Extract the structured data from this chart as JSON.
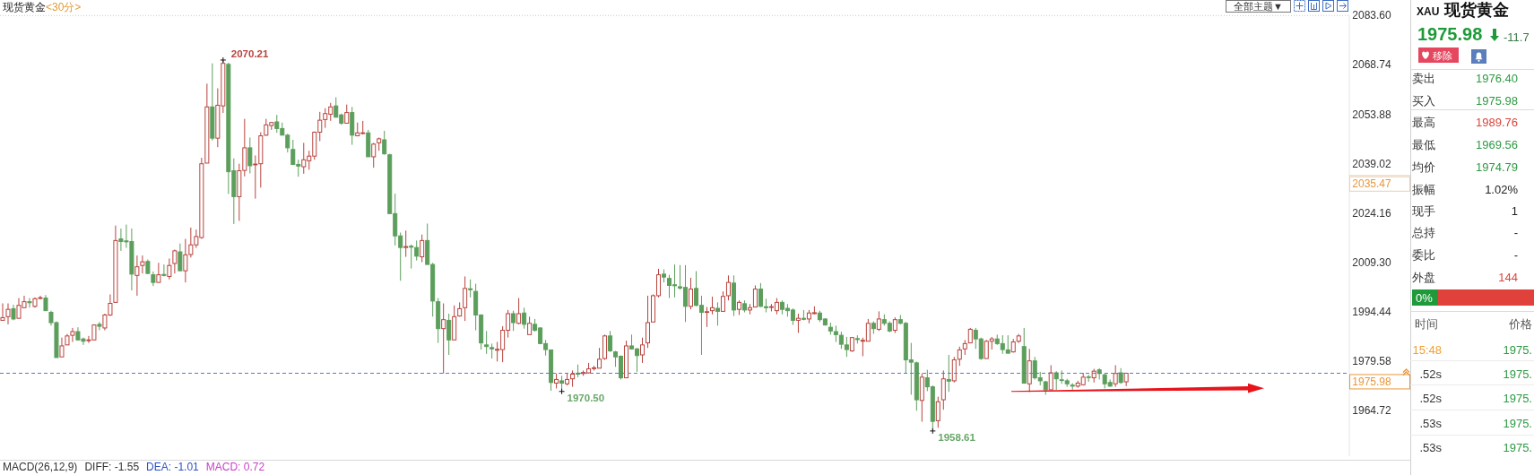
{
  "chart_data": [
    {
      "type": "candlestick",
      "title": "现货黄金",
      "subtitle": "<30分>",
      "categories": [
        null,
        null,
        null,
        null,
        null,
        null,
        null,
        null,
        null,
        null,
        null,
        null,
        null,
        null,
        null,
        null,
        null,
        null,
        null,
        null,
        null,
        null,
        null,
        null,
        null,
        null,
        null,
        null,
        null,
        null,
        null,
        null,
        null,
        null,
        null,
        null,
        null,
        null,
        null,
        null,
        null,
        null,
        null,
        null,
        null,
        null,
        null,
        null,
        null,
        null,
        null,
        null,
        null,
        null,
        null,
        null,
        null,
        null,
        null,
        null,
        null,
        null,
        null,
        null,
        null,
        null,
        null,
        null,
        null,
        null,
        null,
        null,
        null,
        null,
        null,
        null,
        null,
        null,
        null,
        null,
        null,
        null,
        null,
        null,
        null,
        null,
        null,
        null,
        null,
        null,
        null,
        null,
        null,
        null,
        null,
        null,
        null,
        null,
        null,
        null,
        null,
        null,
        null,
        null,
        null,
        null,
        null,
        null,
        null,
        null,
        null,
        null,
        null,
        null,
        null,
        null,
        null,
        null,
        null,
        null,
        null,
        null,
        null,
        null,
        null,
        null,
        null,
        null,
        null,
        null,
        null,
        null,
        null,
        null,
        null,
        null,
        null,
        null,
        null,
        null,
        null,
        null,
        null,
        null,
        null,
        null,
        null,
        null,
        null,
        null,
        null,
        null,
        null,
        null,
        null,
        null,
        null,
        null,
        null,
        null,
        null,
        null,
        null,
        null,
        null,
        null,
        null,
        null,
        null,
        null,
        null,
        null,
        null,
        null,
        null,
        null,
        null,
        null,
        null,
        null,
        null,
        null,
        null,
        null,
        null,
        null,
        null,
        null,
        null,
        null,
        null,
        null,
        null,
        null,
        null,
        null,
        null,
        null,
        null,
        null,
        null,
        null,
        null,
        null,
        null,
        null,
        null,
        null,
        null,
        null,
        null,
        null,
        null,
        null,
        null,
        null,
        null,
        null,
        null,
        null,
        null,
        null,
        null,
        null,
        null,
        null,
        null,
        null,
        null,
        null,
        null,
        null,
        null,
        null,
        null,
        null,
        null,
        null,
        null,
        null,
        null,
        null,
        null,
        null,
        null,
        null,
        null,
        null,
        null,
        null,
        null
      ],
      "ohlc": [
        [
          1991.9,
          1997.0,
          1991.9,
          1992.7
        ],
        [
          1993.0,
          1997.0,
          1990.7,
          1995.2
        ],
        [
          1995.4,
          1996.6,
          1991.9,
          1992.3
        ],
        [
          1992.5,
          1998.6,
          1992.5,
          1996.4
        ],
        [
          1995.7,
          1999.3,
          1995.7,
          1997.5
        ],
        [
          1997.5,
          1998.6,
          1995.7,
          1997.2
        ],
        [
          1996.1,
          1998.8,
          1995.7,
          1998.4
        ],
        [
          1998.5,
          1999.3,
          1998.2,
          1998.7
        ],
        [
          1998.6,
          1999.5,
          1994.8,
          1994.8
        ],
        [
          1994.3,
          1994.8,
          1990.3,
          1991.2
        ],
        [
          1991.2,
          1991.6,
          1980.7,
          1980.7
        ],
        [
          1980.9,
          1986.7,
          1980.9,
          1984.2
        ],
        [
          1984.5,
          1987.8,
          1984.5,
          1987.2
        ],
        [
          1987.4,
          1989.6,
          1985.4,
          1988.5
        ],
        [
          1988.5,
          1989.8,
          1985.8,
          1986.0
        ],
        [
          1986.3,
          1986.7,
          1984.5,
          1985.6
        ],
        [
          1985.8,
          1987.2,
          1985.1,
          1986.0
        ],
        [
          1986.0,
          1990.7,
          1986.0,
          1990.5
        ],
        [
          1990.7,
          1991.4,
          1988.9,
          1990.1
        ],
        [
          1989.6,
          1993.9,
          1988.9,
          1993.5
        ],
        [
          1993.5,
          1999.7,
          1993.2,
          1997.0
        ],
        [
          1997.3,
          2020.4,
          1997.3,
          2015.9
        ],
        [
          2016.4,
          2019.5,
          2012.8,
          2015.6
        ],
        [
          2015.8,
          2020.7,
          2013.7,
          2015.5
        ],
        [
          2015.6,
          2019.5,
          2000.9,
          2005.8
        ],
        [
          2005.4,
          2011.4,
          1999.3,
          2008.0
        ],
        [
          2008.4,
          2011.4,
          2006.0,
          2009.5
        ],
        [
          2009.6,
          2010.2,
          2005.8,
          2006.0
        ],
        [
          2005.6,
          2006.6,
          2002.2,
          2003.3
        ],
        [
          2003.3,
          2009.2,
          2003.3,
          2005.6
        ],
        [
          2005.7,
          2008.7,
          2005.1,
          2005.4
        ],
        [
          2005.1,
          2010.5,
          2004.2,
          2008.4
        ],
        [
          2009.0,
          2013.2,
          2006.0,
          2012.8
        ],
        [
          2012.5,
          2015.0,
          2006.8,
          2006.8
        ],
        [
          2006.8,
          2016.4,
          2003.3,
          2011.6
        ],
        [
          2011.7,
          2019.8,
          2010.8,
          2014.6
        ],
        [
          2014.6,
          2019.2,
          2013.7,
          2017.1
        ],
        [
          2016.8,
          2040.8,
          2016.4,
          2039.0
        ],
        [
          2039.2,
          2063.1,
          2039.2,
          2056.1
        ],
        [
          2056.1,
          2069.2,
          2046.0,
          2046.7
        ],
        [
          2046.7,
          2061.7,
          2044.0,
          2056.6
        ],
        [
          2056.4,
          2070.21,
          2054.3,
          2069.2
        ],
        [
          2068.9,
          2069.4,
          2029.9,
          2036.6
        ],
        [
          2036.9,
          2040.6,
          2020.9,
          2029.1
        ],
        [
          2029.1,
          2039.0,
          2021.8,
          2036.9
        ],
        [
          2037.0,
          2052.5,
          2035.2,
          2043.8
        ],
        [
          2043.8,
          2046.9,
          2036.1,
          2038.4
        ],
        [
          2038.7,
          2041.5,
          2028.5,
          2038.9
        ],
        [
          2039.0,
          2048.5,
          2031.8,
          2047.4
        ],
        [
          2047.6,
          2052.5,
          2047.4,
          2050.7
        ],
        [
          2050.5,
          2051.6,
          2049.2,
          2051.4
        ],
        [
          2051.6,
          2053.7,
          2048.3,
          2049.6
        ],
        [
          2049.6,
          2051.4,
          2047.6,
          2047.6
        ],
        [
          2047.6,
          2048.0,
          2042.4,
          2043.8
        ],
        [
          2043.3,
          2046.2,
          2038.7,
          2038.8
        ],
        [
          2038.8,
          2040.2,
          2035.1,
          2038.3
        ],
        [
          2038.1,
          2045.3,
          2036.0,
          2040.2
        ],
        [
          2039.9,
          2042.9,
          2037.2,
          2041.3
        ],
        [
          2041.3,
          2048.7,
          2040.2,
          2048.5
        ],
        [
          2048.5,
          2054.6,
          2045.8,
          2052.1
        ],
        [
          2052.3,
          2055.7,
          2049.8,
          2054.1
        ],
        [
          2053.9,
          2057.3,
          2051.9,
          2056.1
        ],
        [
          2056.4,
          2059.0,
          2053.0,
          2053.0
        ],
        [
          2053.7,
          2054.1,
          2050.7,
          2051.2
        ],
        [
          2051.2,
          2056.8,
          2051.2,
          2054.4
        ],
        [
          2054.4,
          2056.1,
          2044.7,
          2047.6
        ],
        [
          2047.4,
          2051.4,
          2047.4,
          2048.3
        ],
        [
          2048.1,
          2051.9,
          2047.8,
          2048.3
        ],
        [
          2048.3,
          2049.2,
          2041.1,
          2041.1
        ],
        [
          2041.1,
          2045.3,
          2037.8,
          2044.9
        ],
        [
          2045.3,
          2046.9,
          2042.9,
          2046.5
        ],
        [
          2046.2,
          2048.9,
          2041.7,
          2042.0
        ],
        [
          2041.7,
          2042.0,
          2024.0,
          2024.0
        ],
        [
          2024.0,
          2030.0,
          2014.4,
          2017.3
        ],
        [
          2017.3,
          2018.3,
          2003.8,
          2013.8
        ],
        [
          2013.8,
          2018.9,
          2011.0,
          2014.1
        ],
        [
          2014.2,
          2014.7,
          2007.5,
          2013.9
        ],
        [
          2013.8,
          2015.9,
          2009.9,
          2011.2
        ],
        [
          2011.0,
          2017.7,
          2009.4,
          2015.9
        ],
        [
          2015.9,
          2021.0,
          2008.7,
          2008.7
        ],
        [
          2008.7,
          2009.2,
          1993.0,
          1997.7
        ],
        [
          1997.5,
          1998.6,
          1985.1,
          1989.4
        ],
        [
          1989.4,
          1997.0,
          1975.9,
          1992.1
        ],
        [
          1991.9,
          1993.9,
          1981.5,
          1986.0
        ],
        [
          1986.0,
          1996.4,
          1986.0,
          1993.0
        ],
        [
          1993.2,
          1997.3,
          1993.0,
          1995.4
        ],
        [
          1995.7,
          2005.1,
          1991.7,
          2001.5
        ],
        [
          2001.4,
          2004.2,
          1998.8,
          2001.1
        ],
        [
          2000.6,
          2002.9,
          1988.9,
          1993.5
        ],
        [
          1993.5,
          1993.7,
          1983.1,
          1985.1
        ],
        [
          1984.5,
          1988.7,
          1981.8,
          1984.0
        ],
        [
          1983.7,
          1984.9,
          1980.4,
          1983.3
        ],
        [
          1982.9,
          1985.4,
          1979.5,
          1983.2
        ],
        [
          1983.1,
          1990.1,
          1979.3,
          1988.9
        ],
        [
          1988.9,
          1995.0,
          1986.7,
          1993.9
        ],
        [
          1993.9,
          1994.8,
          1988.7,
          1991.2
        ],
        [
          1991.0,
          1998.6,
          1990.7,
          1993.9
        ],
        [
          1994.1,
          1995.7,
          1989.4,
          1990.7
        ],
        [
          1987.6,
          1993.0,
          1987.6,
          1991.0
        ],
        [
          1990.7,
          1992.3,
          1988.5,
          1988.9
        ],
        [
          1989.6,
          1989.8,
          1984.9,
          1984.9
        ],
        [
          1984.9,
          1986.0,
          1981.3,
          1983.1
        ],
        [
          1983.0,
          1983.1,
          1970.7,
          1973.2
        ],
        [
          1973.0,
          1975.9,
          1971.4,
          1974.1
        ],
        [
          1973.7,
          1975.2,
          1970.5,
          1973.0
        ],
        [
          1972.8,
          1975.9,
          1972.3,
          1974.1
        ],
        [
          1974.3,
          1976.8,
          1971.9,
          1975.7
        ],
        [
          1976.0,
          1978.6,
          1974.8,
          1975.7
        ],
        [
          1975.9,
          1976.8,
          1975.2,
          1976.2
        ],
        [
          1976.1,
          1979.1,
          1975.9,
          1977.3
        ],
        [
          1977.4,
          1978.2,
          1976.8,
          1977.6
        ],
        [
          1977.5,
          1983.6,
          1977.5,
          1980.2
        ],
        [
          1980.4,
          1987.6,
          1980.0,
          1987.2
        ],
        [
          1987.2,
          1988.7,
          1982.4,
          1982.7
        ],
        [
          1982.4,
          1982.7,
          1977.9,
          1980.9
        ],
        [
          1981.1,
          1981.3,
          1974.1,
          1974.6
        ],
        [
          1974.6,
          1985.8,
          1974.6,
          1984.2
        ],
        [
          1984.2,
          1987.6,
          1983.1,
          1983.3
        ],
        [
          1983.3,
          1983.6,
          1976.4,
          1981.3
        ],
        [
          1981.5,
          1986.7,
          1979.1,
          1984.5
        ],
        [
          1985.1,
          1999.3,
          1983.6,
          1991.2
        ],
        [
          1991.4,
          1999.7,
          1991.4,
          1999.3
        ],
        [
          1999.3,
          2007.4,
          1998.8,
          2005.6
        ],
        [
          2005.8,
          2007.2,
          2003.3,
          2004.9
        ],
        [
          2004.5,
          2005.6,
          1998.6,
          2002.4
        ],
        [
          2002.6,
          2008.7,
          1998.8,
          2002.3
        ],
        [
          2002.0,
          2008.5,
          2001.1,
          2001.6
        ],
        [
          2001.8,
          2008.5,
          1991.4,
          1996.1
        ],
        [
          1996.1,
          2004.7,
          1995.2,
          2001.3
        ],
        [
          2001.5,
          2006.7,
          1996.1,
          1996.4
        ],
        [
          1996.4,
          1999.3,
          1981.5,
          1994.3
        ],
        [
          1994.3,
          1995.9,
          1989.9,
          1994.5
        ],
        [
          1994.8,
          1999.0,
          1993.7,
          1995.7
        ],
        [
          1995.5,
          1997.3,
          1990.3,
          1994.6
        ],
        [
          1994.6,
          2000.6,
          1994.6,
          1999.1
        ],
        [
          1999.3,
          2005.4,
          1997.9,
          2003.3
        ],
        [
          2003.1,
          2005.4,
          1993.2,
          1995.0
        ],
        [
          1995.2,
          1997.9,
          1993.5,
          1997.3
        ],
        [
          1996.9,
          1997.9,
          1994.3,
          1995.0
        ],
        [
          1995.0,
          1996.8,
          1993.7,
          1995.7
        ],
        [
          1995.9,
          2002.4,
          1995.9,
          2001.3
        ],
        [
          2001.3,
          2003.1,
          1995.9,
          1996.1
        ],
        [
          1996.0,
          1998.4,
          1994.3,
          1995.7
        ],
        [
          1995.8,
          1996.8,
          1994.6,
          1996.0
        ],
        [
          1994.8,
          1998.6,
          1993.7,
          1997.3
        ],
        [
          1997.3,
          1997.9,
          1993.7,
          1995.2
        ],
        [
          1995.5,
          1996.8,
          1993.0,
          1994.8
        ],
        [
          1995.0,
          1995.5,
          1990.5,
          1991.9
        ],
        [
          1991.9,
          1993.9,
          1988.1,
          1992.5
        ],
        [
          1992.5,
          1995.0,
          1991.9,
          1992.2
        ],
        [
          1992.3,
          1995.0,
          1991.0,
          1994.1
        ],
        [
          1993.9,
          1996.1,
          1993.7,
          1994.2
        ],
        [
          1994.1,
          1994.8,
          1991.4,
          1992.1
        ],
        [
          1992.3,
          1992.5,
          1990.3,
          1990.5
        ],
        [
          1989.8,
          1991.2,
          1987.6,
          1988.7
        ],
        [
          1988.5,
          1990.3,
          1985.4,
          1987.6
        ],
        [
          1987.4,
          1988.5,
          1983.3,
          1984.7
        ],
        [
          1984.5,
          1986.9,
          1980.9,
          1983.1
        ],
        [
          1982.7,
          1986.9,
          1982.4,
          1986.7
        ],
        [
          1986.4,
          1987.4,
          1984.9,
          1986.1
        ],
        [
          1985.6,
          1986.7,
          1981.1,
          1985.9
        ],
        [
          1985.6,
          1992.3,
          1985.6,
          1991.0
        ],
        [
          1991.0,
          1991.6,
          1987.8,
          1989.4
        ],
        [
          1989.2,
          1994.6,
          1988.7,
          1992.3
        ],
        [
          1992.1,
          1993.7,
          1990.3,
          1991.0
        ],
        [
          1991.0,
          1991.6,
          1988.3,
          1988.7
        ],
        [
          1988.9,
          1992.8,
          1988.1,
          1992.1
        ],
        [
          1992.1,
          1993.5,
          1990.7,
          1991.0
        ],
        [
          1991.0,
          1991.4,
          1975.9,
          1980.0
        ],
        [
          1980.0,
          1985.1,
          1969.5,
          1979.3
        ],
        [
          1979.1,
          1979.5,
          1964.7,
          1968.0
        ],
        [
          1967.8,
          1975.9,
          1961.4,
          1974.8
        ],
        [
          1974.6,
          1977.0,
          1970.6,
          1971.9
        ],
        [
          1971.9,
          1972.3,
          1958.61,
          1961.5
        ],
        [
          1961.7,
          1968.9,
          1959.6,
          1967.4
        ],
        [
          1968.0,
          1976.8,
          1965.0,
          1974.3
        ],
        [
          1974.1,
          1981.5,
          1970.4,
          1973.6
        ],
        [
          1973.7,
          1980.9,
          1973.2,
          1980.0
        ],
        [
          1980.2,
          1984.0,
          1978.2,
          1983.0
        ],
        [
          1983.3,
          1986.0,
          1981.5,
          1984.9
        ],
        [
          1985.1,
          1989.6,
          1985.1,
          1989.2
        ],
        [
          1988.9,
          1989.6,
          1983.3,
          1986.3
        ],
        [
          1986.3,
          1986.7,
          1980.0,
          1980.4
        ],
        [
          1980.4,
          1986.0,
          1980.4,
          1985.6
        ],
        [
          1985.6,
          1986.9,
          1983.1,
          1986.3
        ],
        [
          1986.3,
          1987.6,
          1984.5,
          1984.9
        ],
        [
          1984.9,
          1987.4,
          1981.8,
          1983.1
        ],
        [
          1983.0,
          1987.4,
          1982.0,
          1982.0
        ],
        [
          1982.4,
          1986.3,
          1982.2,
          1985.4
        ],
        [
          1985.6,
          1987.8,
          1985.1,
          1987.2
        ],
        [
          1984.0,
          1989.6,
          1972.8,
          1973.0
        ],
        [
          1972.8,
          1983.3,
          1970.3,
          1979.7
        ],
        [
          1979.7,
          1980.9,
          1974.1,
          1974.6
        ],
        [
          1974.6,
          1976.4,
          1972.3,
          1973.7
        ],
        [
          1973.4,
          1973.7,
          1969.5,
          1971.0
        ],
        [
          1971.0,
          1978.4,
          1971.0,
          1976.1
        ],
        [
          1976.1,
          1976.6,
          1971.0,
          1974.3
        ],
        [
          1974.0,
          1976.8,
          1972.8,
          1973.8
        ],
        [
          1973.7,
          1974.3,
          1971.9,
          1972.8
        ],
        [
          1972.4,
          1973.0,
          1971.0,
          1972.1
        ],
        [
          1972.1,
          1973.7,
          1971.6,
          1973.0
        ],
        [
          1972.5,
          1976.1,
          1972.3,
          1974.8
        ],
        [
          1974.9,
          1975.5,
          1973.4,
          1974.7
        ],
        [
          1974.6,
          1977.3,
          1973.2,
          1976.6
        ],
        [
          1977.0,
          1977.5,
          1974.1,
          1975.9
        ],
        [
          1975.5,
          1975.9,
          1971.4,
          1972.8
        ],
        [
          1973.2,
          1974.1,
          1971.9,
          1972.1
        ],
        [
          1972.8,
          1978.4,
          1971.9,
          1975.9
        ],
        [
          1976.1,
          1977.5,
          1972.8,
          1973.2
        ],
        [
          1973.4,
          1976.1,
          1972.1,
          1975.98
        ],
        null,
        null,
        null,
        null,
        null,
        null,
        null,
        null,
        null,
        null,
        null,
        null,
        null,
        null,
        null,
        null,
        null,
        null,
        null,
        null,
        null,
        null,
        null,
        null,
        null,
        null,
        null,
        null,
        null,
        null,
        null,
        null,
        null,
        null,
        null,
        null,
        null,
        null,
        null,
        null,
        null
      ],
      "ylim": [
        1951,
        2083.6
      ],
      "yticks": [
        {
          "value": 2083.6,
          "label": "2083.60"
        },
        2068.74,
        2053.88,
        2039.02,
        2024.16,
        {
          "value": 2009.3,
          "label": "2009.30"
        },
        1994.44,
        1979.58,
        1964.72
      ],
      "tick_labels": "y",
      "ref_lines": [
        {
          "axis": "y",
          "value": 1975.98,
          "label": "1975.98",
          "color": "#5a7db0",
          "line_style": "dashed"
        },
        {
          "axis": "y",
          "value": 2035.47,
          "label": "2035.47",
          "color": "#e9cfb4"
        }
      ],
      "annotations": [
        "全部主题▼",
        "MACD(26,12,9)",
        "DIFF: -1.55",
        "DEA: -1.01",
        "MACD: 0.72",
        "2070.21",
        "1970.50",
        "1958.61"
      ]
    },
    {
      "type": "other",
      "title": "XAU 现货黄金",
      "annotations": [
        "1975.98",
        "-11.7",
        "移除",
        "卖出",
        "1976.40",
        "买入",
        "1975.98",
        "最高",
        "1989.76",
        "最低",
        "1969.56",
        "均价",
        "1974.79",
        "振幅",
        "1.02%",
        "现手",
        "1",
        "总持",
        "-",
        "委比",
        "-",
        "外盘",
        "144",
        "0%",
        "时间",
        "价格",
        "15:48",
        "1975.",
        ".52s",
        "1975.",
        ".52s",
        "1975.",
        ".53s",
        "1975.",
        ".53s",
        "1975."
      ]
    }
  ]
}
